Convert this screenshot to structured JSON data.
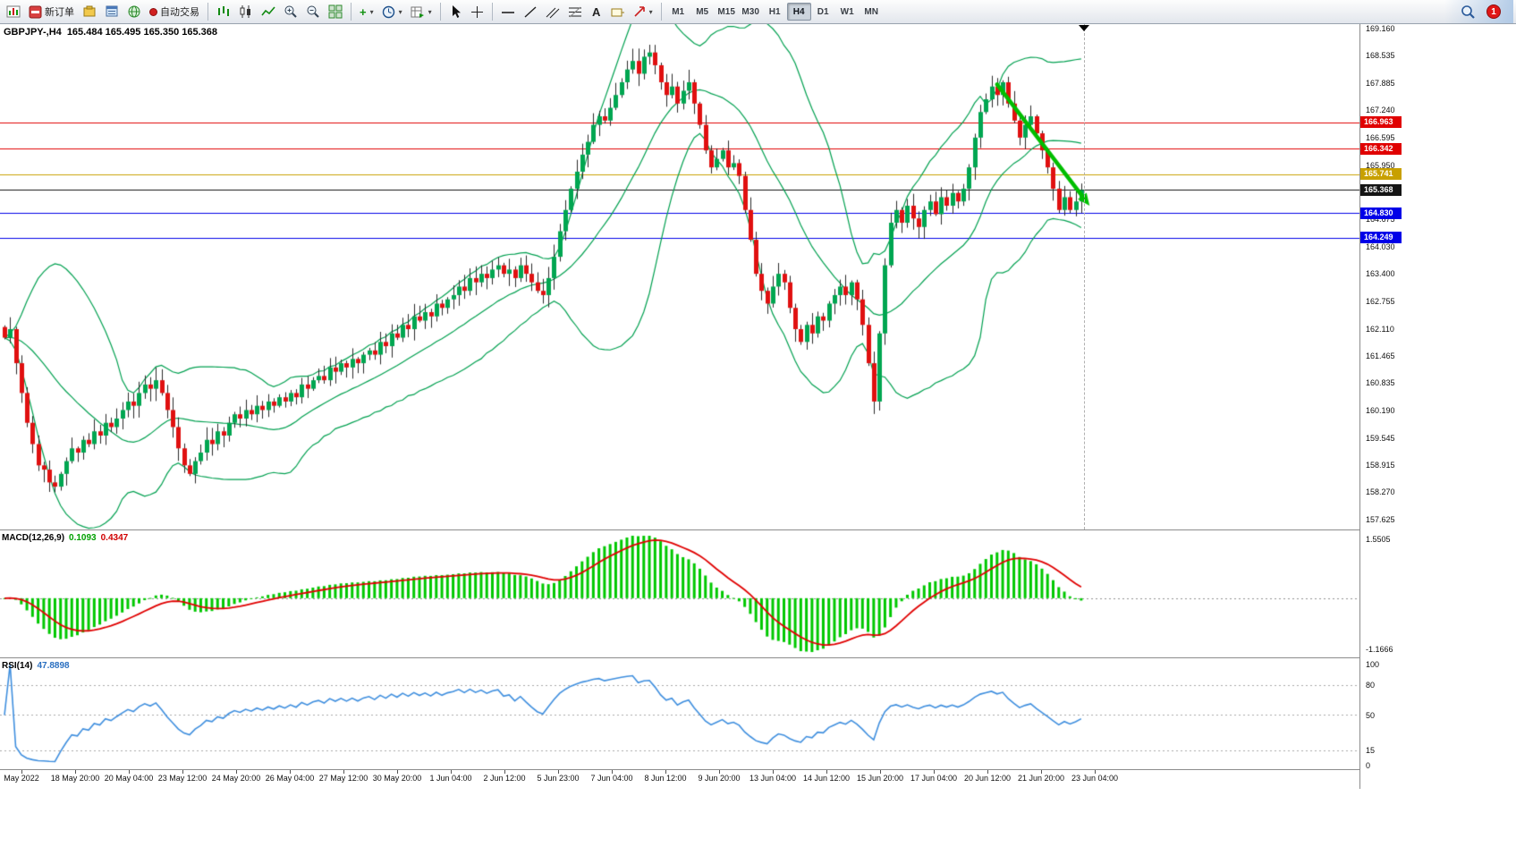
{
  "toolbar": {
    "new_order_label": "新订单",
    "auto_trading_label": "自动交易",
    "timeframes": [
      "M1",
      "M5",
      "M15",
      "M30",
      "H1",
      "H4",
      "D1",
      "W1",
      "MN"
    ],
    "active_timeframe": "H4",
    "notification_count": "1"
  },
  "chart": {
    "symbol_title": "GBPJPY-,H4",
    "ohlc_text": "165.484 165.495 165.350 165.368",
    "colors": {
      "up": "#00A651",
      "down": "#E01010",
      "wick": "#2a2a2a",
      "bollinger": "#00A050",
      "arrow": "#00BE00",
      "macd_hist": "#00C800",
      "macd_signal": "#E00000",
      "rsi_line": "#3E8EDE"
    },
    "price_axis": {
      "top_price": 169.16,
      "bottom_price": 157.625,
      "ticks": [
        "169.160",
        "168.535",
        "167.885",
        "167.240",
        "166.595",
        "165.950",
        "164.675",
        "164.030",
        "163.400",
        "162.755",
        "162.110",
        "161.465",
        "160.835",
        "160.190",
        "159.545",
        "158.915",
        "158.270",
        "157.625"
      ]
    },
    "hlines": [
      {
        "price": 166.963,
        "label": "166.963",
        "color": "#E00000"
      },
      {
        "price": 166.342,
        "label": "166.342",
        "color": "#E00000"
      },
      {
        "price": 165.741,
        "label": "165.741",
        "color": "#C8A000"
      },
      {
        "price": 165.368,
        "label": "165.368",
        "color": "#151515",
        "current": true
      },
      {
        "price": 164.83,
        "label": "164.830",
        "color": "#0000E8"
      },
      {
        "price": 164.249,
        "label": "164.249",
        "color": "#0000E8"
      }
    ],
    "trend_arrow": {
      "from_index": 177,
      "from_price": 167.85,
      "to_index": 193.5,
      "to_price": 165.0
    },
    "time_axis": [
      "May 2022",
      "18 May 20:00",
      "20 May 04:00",
      "23 May 12:00",
      "24 May 20:00",
      "26 May 04:00",
      "27 May 12:00",
      "30 May 20:00",
      "1 Jun 04:00",
      "2 Jun 12:00",
      "5 Jun 23:00",
      "7 Jun 04:00",
      "8 Jun 12:00",
      "9 Jun 20:00",
      "13 Jun 04:00",
      "14 Jun 12:00",
      "15 Jun 20:00",
      "17 Jun 04:00",
      "20 Jun 12:00",
      "21 Jun 20:00",
      "23 Jun 04:00"
    ]
  },
  "macd": {
    "name": "MACD(12,26,9)",
    "value_main": "0.1093",
    "value_signal": "0.4347",
    "scale_top": "1.5505",
    "scale_bottom": "-1.1666"
  },
  "rsi": {
    "name": "RSI(14)",
    "value": "47.8898",
    "ticks": [
      100,
      80,
      50,
      15,
      0
    ],
    "levels": [
      80,
      50,
      15
    ]
  },
  "chart_data": {
    "type": "candlestick",
    "symbol": "GBPJPY",
    "period": "H4",
    "ylim": [
      157.625,
      169.16
    ],
    "indicators": [
      {
        "type": "bollinger",
        "period": 20,
        "deviation": 2
      },
      {
        "type": "macd",
        "fast": 12,
        "slow": 26,
        "signal": 9,
        "last_main": 0.1093,
        "last_signal": 0.4347
      },
      {
        "type": "rsi",
        "period": 14,
        "last_value": 47.8898
      }
    ],
    "closes": [
      161.9,
      162.1,
      161.3,
      160.6,
      159.9,
      159.4,
      158.9,
      158.8,
      158.5,
      158.4,
      158.7,
      159.0,
      159.3,
      159.2,
      159.5,
      159.4,
      159.7,
      159.6,
      159.9,
      159.8,
      160.0,
      160.2,
      160.4,
      160.3,
      160.6,
      160.8,
      160.7,
      160.9,
      160.6,
      160.2,
      159.8,
      159.3,
      158.9,
      158.7,
      159.0,
      159.2,
      159.5,
      159.4,
      159.7,
      159.6,
      159.9,
      160.1,
      160.0,
      160.2,
      160.1,
      160.3,
      160.2,
      160.4,
      160.3,
      160.5,
      160.4,
      160.6,
      160.5,
      160.8,
      160.7,
      160.9,
      161.0,
      160.9,
      161.2,
      161.1,
      161.3,
      161.2,
      161.4,
      161.3,
      161.5,
      161.6,
      161.5,
      161.8,
      161.7,
      162.0,
      161.9,
      162.2,
      162.1,
      162.4,
      162.3,
      162.5,
      162.4,
      162.7,
      162.6,
      162.8,
      162.9,
      163.1,
      163.0,
      163.3,
      163.2,
      163.4,
      163.3,
      163.5,
      163.6,
      163.4,
      163.5,
      163.3,
      163.6,
      163.4,
      163.2,
      163.0,
      162.9,
      163.3,
      163.8,
      164.4,
      164.9,
      165.4,
      165.8,
      166.2,
      166.5,
      166.9,
      167.1,
      167.0,
      167.3,
      167.6,
      167.9,
      168.2,
      168.4,
      168.1,
      168.5,
      168.6,
      168.3,
      167.9,
      167.6,
      167.8,
      167.4,
      167.7,
      167.9,
      167.4,
      166.9,
      166.3,
      165.9,
      166.1,
      166.3,
      165.9,
      166.0,
      165.7,
      164.9,
      164.2,
      163.4,
      163.0,
      162.7,
      163.1,
      163.4,
      163.2,
      162.6,
      162.1,
      161.8,
      162.2,
      162.0,
      162.4,
      162.3,
      162.7,
      162.9,
      163.1,
      162.9,
      163.2,
      162.8,
      162.2,
      161.3,
      160.4,
      162.0,
      163.6,
      164.6,
      164.9,
      164.6,
      165.0,
      164.7,
      164.5,
      164.9,
      165.1,
      164.8,
      165.2,
      165.0,
      165.3,
      165.1,
      165.4,
      165.9,
      166.6,
      167.2,
      167.5,
      167.8,
      167.6,
      167.9,
      167.4,
      167.0,
      166.6,
      166.9,
      167.1,
      166.7,
      166.3,
      165.9,
      165.4,
      164.9,
      165.2,
      164.9,
      165.1,
      165.368
    ]
  }
}
